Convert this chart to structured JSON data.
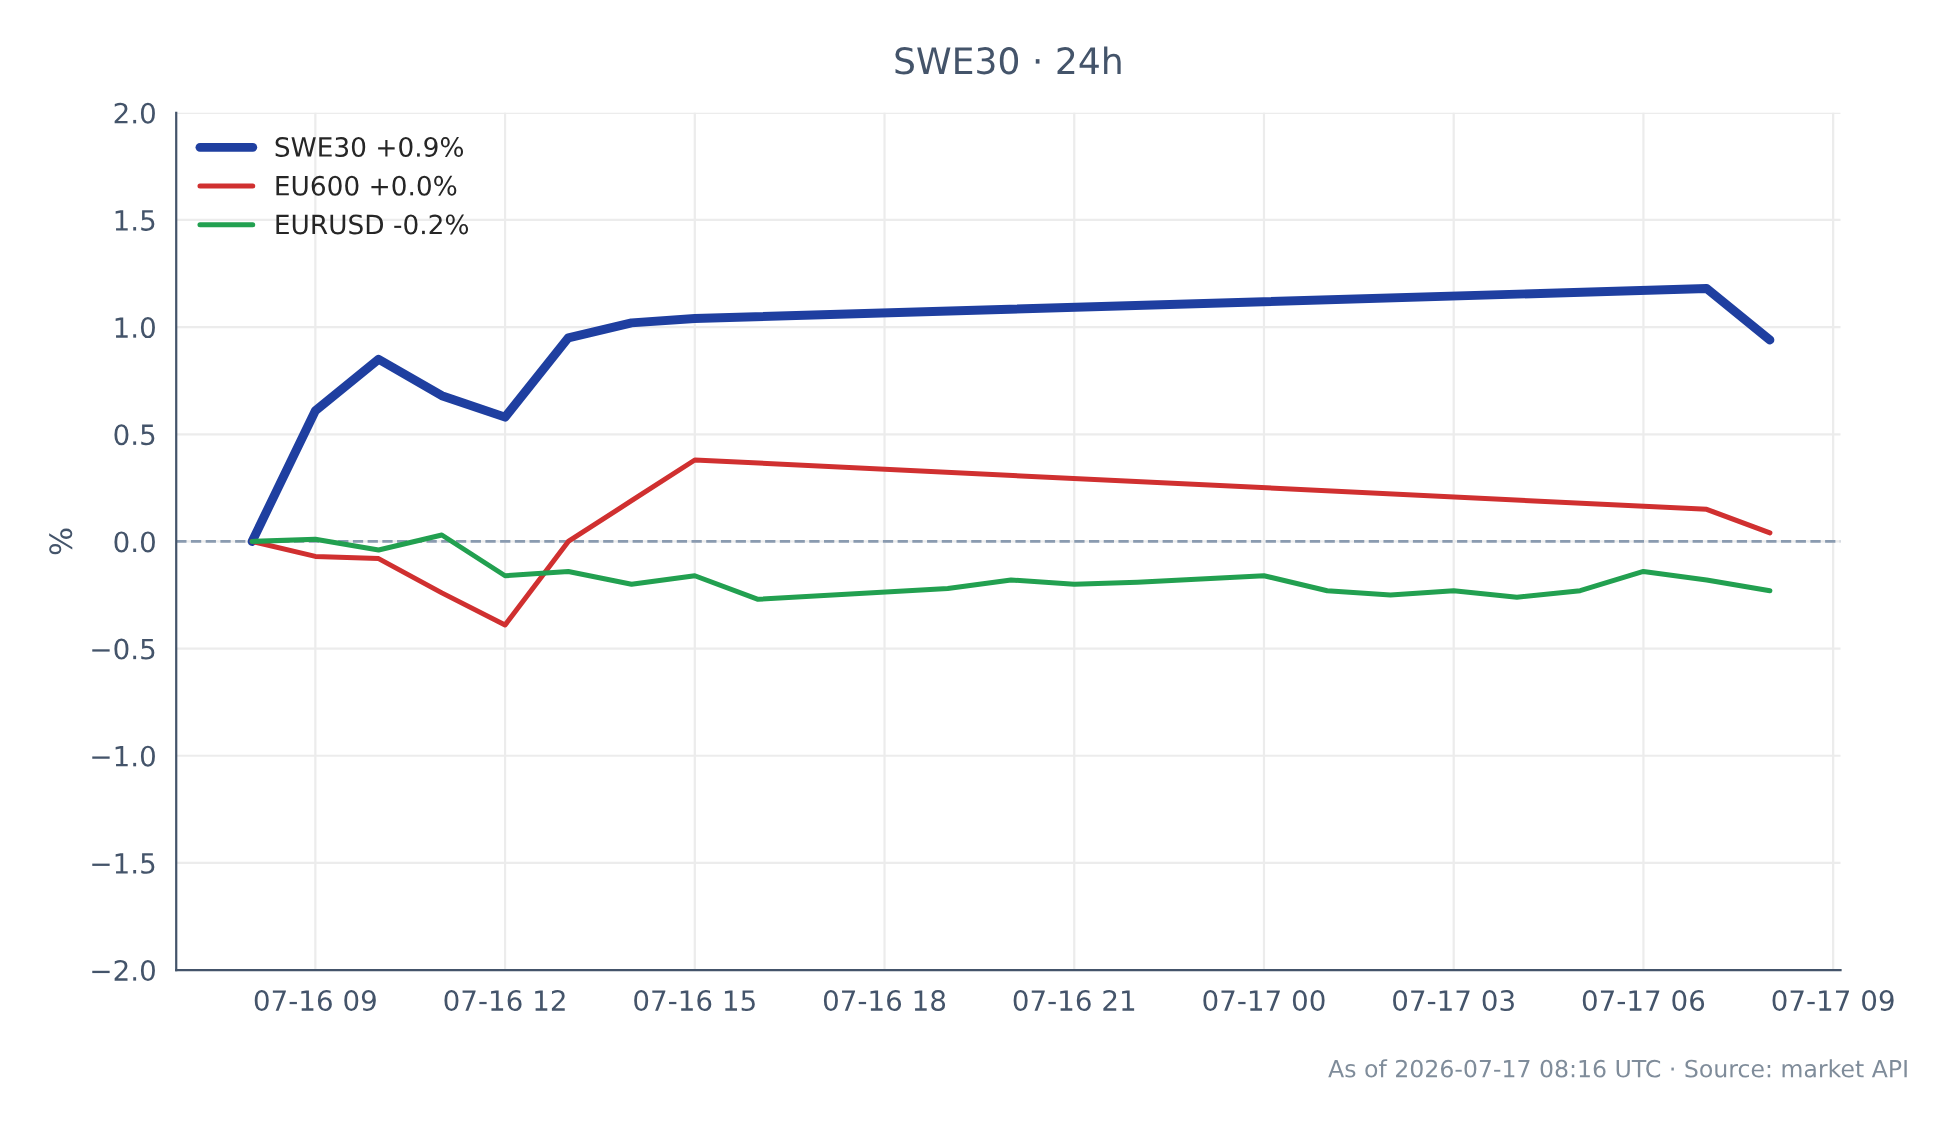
{
  "chart_data": {
    "type": "line",
    "title": "SWE30 · 24h",
    "ylabel": "%",
    "annotations": [
      "As of 2026-07-17 08:16 UTC · Source: market API"
    ],
    "xlim": [
      "2026-07-16T06:48",
      "2026-07-17T09:07"
    ],
    "xticks": [
      {
        "value": "2026-07-16T09:00",
        "label": "07-16 09"
      },
      {
        "value": "2026-07-16T12:00",
        "label": "07-16 12"
      },
      {
        "value": "2026-07-16T15:00",
        "label": "07-16 15"
      },
      {
        "value": "2026-07-16T18:00",
        "label": "07-16 18"
      },
      {
        "value": "2026-07-16T21:00",
        "label": "07-16 21"
      },
      {
        "value": "2026-07-17T00:00",
        "label": "07-17 00"
      },
      {
        "value": "2026-07-17T03:00",
        "label": "07-17 03"
      },
      {
        "value": "2026-07-17T06:00",
        "label": "07-17 06"
      },
      {
        "value": "2026-07-17T09:00",
        "label": "07-17 09"
      }
    ],
    "ylim": [
      -2.0,
      2.0
    ],
    "yticks": [
      {
        "value": -2.0,
        "label": "−2.0"
      },
      {
        "value": -1.5,
        "label": "−1.5"
      },
      {
        "value": -1.0,
        "label": "−1.0"
      },
      {
        "value": -0.5,
        "label": "−0.5"
      },
      {
        "value": 0.0,
        "label": "0.0"
      },
      {
        "value": 0.5,
        "label": "0.5"
      },
      {
        "value": 1.0,
        "label": "1.0"
      },
      {
        "value": 1.5,
        "label": "1.5"
      },
      {
        "value": 2.0,
        "label": "2.0"
      }
    ],
    "grid": true,
    "legend": "top left",
    "marker": "none",
    "line_style": "solid",
    "ref_lines": [
      {
        "axis": "y",
        "value": 0,
        "color": "#8a9bb0",
        "line_style": "dashed"
      }
    ],
    "series": [
      {
        "name": "SWE30 +0.9%",
        "color": "#1f3fa0",
        "x": [
          "2026-07-16T08:00",
          "2026-07-16T09:00",
          "2026-07-16T10:00",
          "2026-07-16T11:00",
          "2026-07-16T12:00",
          "2026-07-16T13:00",
          "2026-07-16T14:00",
          "2026-07-16T15:00",
          "2026-07-17T07:00",
          "2026-07-17T08:00"
        ],
        "values": [
          0.0,
          0.61,
          0.85,
          0.68,
          0.58,
          0.95,
          1.02,
          1.04,
          1.18,
          0.94
        ]
      },
      {
        "name": "EU600 +0.0%",
        "color": "#d03030",
        "x": [
          "2026-07-16T08:00",
          "2026-07-16T09:00",
          "2026-07-16T10:00",
          "2026-07-16T11:00",
          "2026-07-16T12:00",
          "2026-07-16T13:00",
          "2026-07-16T14:00",
          "2026-07-16T15:00",
          "2026-07-17T07:00",
          "2026-07-17T08:00"
        ],
        "values": [
          0.0,
          -0.07,
          -0.08,
          -0.24,
          -0.39,
          0.0,
          0.19,
          0.38,
          0.15,
          0.04
        ]
      },
      {
        "name": "EURUSD -0.2%",
        "color": "#22a050",
        "x": [
          "2026-07-16T08:00",
          "2026-07-16T09:00",
          "2026-07-16T10:00",
          "2026-07-16T11:00",
          "2026-07-16T12:00",
          "2026-07-16T13:00",
          "2026-07-16T14:00",
          "2026-07-16T15:00",
          "2026-07-16T16:00",
          "2026-07-16T19:00",
          "2026-07-16T20:00",
          "2026-07-16T21:00",
          "2026-07-16T22:00",
          "2026-07-17T00:00",
          "2026-07-17T01:00",
          "2026-07-17T02:00",
          "2026-07-17T03:00",
          "2026-07-17T04:00",
          "2026-07-17T05:00",
          "2026-07-17T06:00",
          "2026-07-17T07:00",
          "2026-07-17T08:00"
        ],
        "values": [
          0.0,
          0.01,
          -0.04,
          0.03,
          -0.16,
          -0.14,
          -0.2,
          -0.16,
          -0.27,
          -0.22,
          -0.18,
          -0.2,
          -0.19,
          -0.16,
          -0.23,
          -0.25,
          -0.23,
          -0.26,
          -0.23,
          -0.14,
          -0.18,
          -0.23
        ]
      }
    ]
  }
}
